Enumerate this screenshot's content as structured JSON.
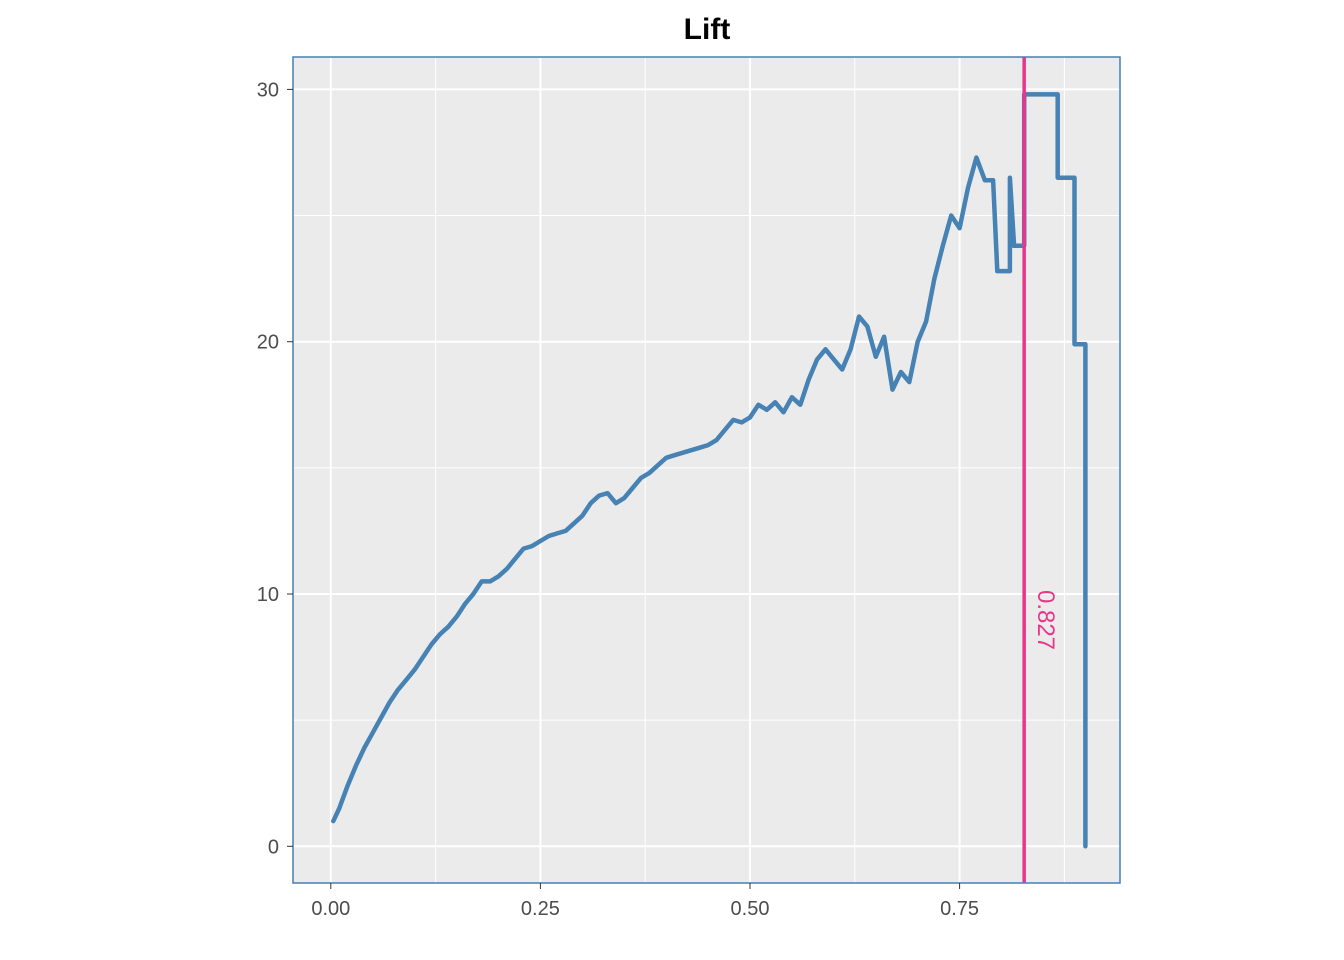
{
  "chart_data": {
    "type": "line",
    "title": "Lift",
    "xlabel": "",
    "ylabel": "",
    "xlim": [
      -0.09,
      1.9
    ],
    "ylim": [
      -1.4,
      31.3
    ],
    "x_ticks": [
      0,
      0.25,
      0.5,
      0.75
    ],
    "x_tick_labels": [
      "0.00",
      "0.25",
      "0.50",
      "0.75"
    ],
    "y_ticks": [
      0,
      10,
      20,
      30
    ],
    "y_tick_labels": [
      "0",
      "10",
      "20",
      "30"
    ],
    "grid": true,
    "legend": "none",
    "colors": {
      "panel_background": "#ebebeb",
      "panel_border": "#4a7eb0",
      "gridline": "#ffffff",
      "series": "#4682b4",
      "vline": "#e8368b"
    },
    "series": [
      {
        "points": [
          [
            0.003,
            1.0
          ],
          [
            0.01,
            1.5
          ],
          [
            0.02,
            2.4
          ],
          [
            0.03,
            3.2
          ],
          [
            0.04,
            3.9
          ],
          [
            0.05,
            4.5
          ],
          [
            0.06,
            5.1
          ],
          [
            0.07,
            5.7
          ],
          [
            0.08,
            6.2
          ],
          [
            0.09,
            6.6
          ],
          [
            0.1,
            7.0
          ],
          [
            0.11,
            7.5
          ],
          [
            0.12,
            8.0
          ],
          [
            0.13,
            8.4
          ],
          [
            0.14,
            8.7
          ],
          [
            0.15,
            9.1
          ],
          [
            0.16,
            9.6
          ],
          [
            0.17,
            10.0
          ],
          [
            0.18,
            10.5
          ],
          [
            0.19,
            10.5
          ],
          [
            0.2,
            10.7
          ],
          [
            0.21,
            11.0
          ],
          [
            0.22,
            11.4
          ],
          [
            0.23,
            11.8
          ],
          [
            0.24,
            11.9
          ],
          [
            0.25,
            12.1
          ],
          [
            0.26,
            12.3
          ],
          [
            0.27,
            12.4
          ],
          [
            0.28,
            12.5
          ],
          [
            0.29,
            12.8
          ],
          [
            0.3,
            13.1
          ],
          [
            0.31,
            13.6
          ],
          [
            0.32,
            13.9
          ],
          [
            0.33,
            14.0
          ],
          [
            0.34,
            13.6
          ],
          [
            0.35,
            13.8
          ],
          [
            0.36,
            14.2
          ],
          [
            0.37,
            14.6
          ],
          [
            0.38,
            14.8
          ],
          [
            0.39,
            15.1
          ],
          [
            0.4,
            15.4
          ],
          [
            0.41,
            15.5
          ],
          [
            0.42,
            15.6
          ],
          [
            0.43,
            15.7
          ],
          [
            0.44,
            15.8
          ],
          [
            0.45,
            15.9
          ],
          [
            0.46,
            16.1
          ],
          [
            0.47,
            16.5
          ],
          [
            0.48,
            16.9
          ],
          [
            0.49,
            16.8
          ],
          [
            0.5,
            17.0
          ],
          [
            0.51,
            17.5
          ],
          [
            0.52,
            17.3
          ],
          [
            0.53,
            17.6
          ],
          [
            0.54,
            17.2
          ],
          [
            0.55,
            17.8
          ],
          [
            0.56,
            17.5
          ],
          [
            0.57,
            18.5
          ],
          [
            0.58,
            19.3
          ],
          [
            0.59,
            19.7
          ],
          [
            0.6,
            19.3
          ],
          [
            0.61,
            18.9
          ],
          [
            0.62,
            19.7
          ],
          [
            0.63,
            21.0
          ],
          [
            0.64,
            20.6
          ],
          [
            0.65,
            19.4
          ],
          [
            0.66,
            20.2
          ],
          [
            0.67,
            18.1
          ],
          [
            0.68,
            18.8
          ],
          [
            0.69,
            18.4
          ],
          [
            0.7,
            20.0
          ],
          [
            0.71,
            20.8
          ],
          [
            0.72,
            22.5
          ],
          [
            0.73,
            23.8
          ],
          [
            0.74,
            25.0
          ],
          [
            0.75,
            24.5
          ],
          [
            0.76,
            26.1
          ],
          [
            0.77,
            27.3
          ],
          [
            0.78,
            26.4
          ],
          [
            0.79,
            26.4
          ],
          [
            0.795,
            22.8
          ],
          [
            0.81,
            22.8
          ],
          [
            0.81,
            26.5
          ],
          [
            0.815,
            23.8
          ],
          [
            0.827,
            23.8
          ],
          [
            0.827,
            29.8
          ],
          [
            0.867,
            29.8
          ],
          [
            0.867,
            26.5
          ],
          [
            0.887,
            26.5
          ],
          [
            0.887,
            19.9
          ],
          [
            0.9,
            19.9
          ],
          [
            0.9,
            0.0
          ]
        ]
      }
    ],
    "vline": {
      "x": 0.827,
      "label": "0.827"
    }
  }
}
